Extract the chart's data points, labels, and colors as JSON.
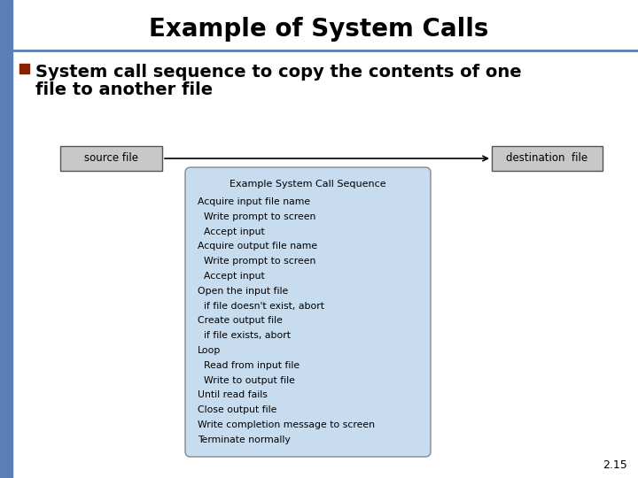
{
  "title": "Example of System Calls",
  "title_fontsize": 20,
  "bullet_text_line1": "System call sequence to copy the contents of one",
  "bullet_text_line2": "file to another file",
  "bullet_fontsize": 14,
  "bullet_color": "#8B2000",
  "source_label": "source file",
  "dest_label": "destination  file",
  "box_header": "Example System Call Sequence",
  "box_lines": [
    "Acquire input file name",
    "  Write prompt to screen",
    "  Accept input",
    "Acquire output file name",
    "  Write prompt to screen",
    "  Accept input",
    "Open the input file",
    "  if file doesn't exist, abort",
    "Create output file",
    "  if file exists, abort",
    "Loop",
    "  Read from input file",
    "  Write to output file",
    "Until read fails",
    "Close output file",
    "Write completion message to screen",
    "Terminate normally"
  ],
  "bg_color": "#ffffff",
  "left_bar_color": "#5B7FB5",
  "header_line_color": "#5B7FB5",
  "box_bg_color": "#C8DCF0",
  "box_border_color": "#888888",
  "file_box_bg": "#C8C8C8",
  "file_box_border": "#555555",
  "arrow_color": "#000000",
  "slide_number": "2.15",
  "slide_number_fontsize": 9
}
